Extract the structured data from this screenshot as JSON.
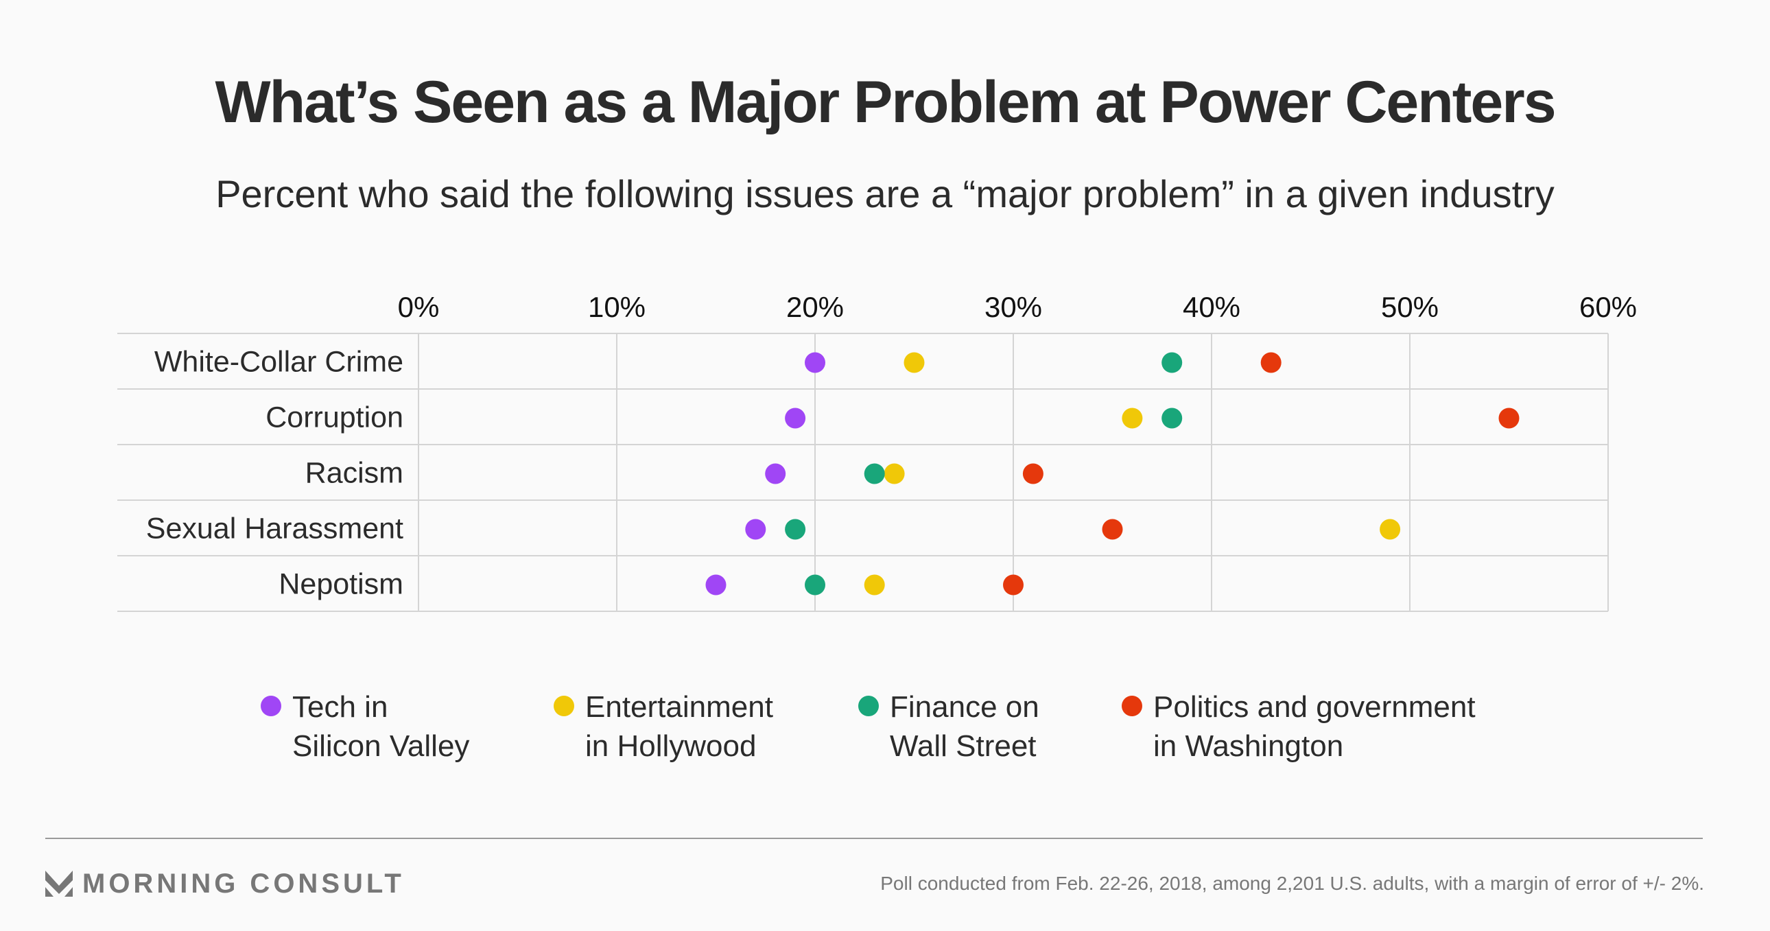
{
  "title": "What’s Seen as a Major Problem at Power Centers",
  "subtitle": "Percent who said the following issues are a “major problem” in a given industry",
  "chart_data": {
    "type": "scatter",
    "title": "What’s Seen as a Major Problem at Power Centers",
    "subtitle": "Percent who said the following issues are a “major problem” in a given industry",
    "xlabel": "",
    "ylabel": "",
    "xlim": [
      0,
      60
    ],
    "x_ticks": [
      "0%",
      "10%",
      "20%",
      "30%",
      "40%",
      "50%",
      "60%"
    ],
    "x_tick_values": [
      0,
      10,
      20,
      30,
      40,
      50,
      60
    ],
    "grid": true,
    "legend_position": "bottom",
    "categories": [
      "White-Collar Crime",
      "Corruption",
      "Racism",
      "Sexual Harassment",
      "Nepotism"
    ],
    "series": [
      {
        "name": "Tech in Silicon Valley",
        "label_lines": [
          "Tech in",
          "Silicon Valley"
        ],
        "color": "#a046f5",
        "values": [
          20,
          19,
          18,
          17,
          15
        ]
      },
      {
        "name": "Entertainment in Hollywood",
        "label_lines": [
          "Entertainment",
          "in Hollywood"
        ],
        "color": "#f0c808",
        "values": [
          25,
          36,
          24,
          49,
          23
        ]
      },
      {
        "name": "Finance on Wall Street",
        "label_lines": [
          "Finance on",
          "Wall Street"
        ],
        "color": "#19a67a",
        "values": [
          38,
          38,
          23,
          19,
          20
        ]
      },
      {
        "name": "Politics and government in Washington",
        "label_lines": [
          "Politics and government",
          "in Washington"
        ],
        "color": "#e5380c",
        "values": [
          43,
          55,
          31,
          35,
          30
        ]
      }
    ]
  },
  "footer": {
    "brand": "MORNING CONSULT",
    "note": "Poll conducted from Feb. 22-26, 2018, among 2,201 U.S. adults, with a margin of error of +/- 2%."
  }
}
